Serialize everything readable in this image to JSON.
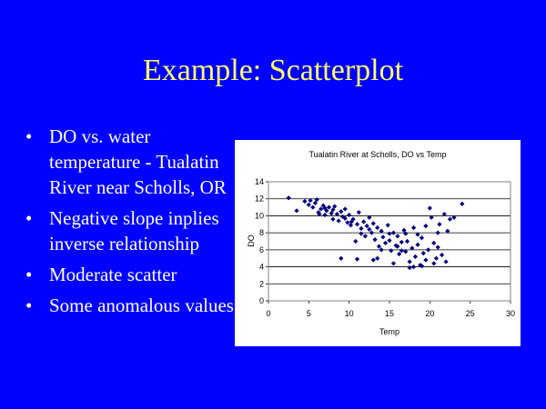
{
  "slide": {
    "title": "Example: Scatterplot",
    "bullets": [
      "DO vs. water temperature - Tualatin River near Scholls, OR",
      "Negative slope inplies inverse relationship",
      "Moderate scatter",
      "Some anomalous values"
    ],
    "bullet_glyph": "•"
  },
  "colors": {
    "background": "#0000ff",
    "title": "#ffff66",
    "text": "#ffffff",
    "marker": "#000080"
  },
  "chart_data": {
    "type": "scatter",
    "title": "Tualatin River at Scholls, DO vs Temp",
    "xlabel": "Temp",
    "ylabel": "DO",
    "xlim": [
      0,
      30
    ],
    "ylim": [
      0,
      14
    ],
    "xticks": [
      0,
      5,
      10,
      15,
      20,
      25,
      30
    ],
    "yticks": [
      0,
      2,
      4,
      6,
      8,
      10,
      12,
      14
    ],
    "grid": "horizontal",
    "legend": "none",
    "series": [
      {
        "marker": "diamond",
        "points": [
          [
            2.5,
            12.1
          ],
          [
            3.5,
            10.6
          ],
          [
            4.5,
            11.7
          ],
          [
            5.0,
            11.3
          ],
          [
            5.2,
            11.8
          ],
          [
            5.5,
            11.0
          ],
          [
            5.8,
            11.5
          ],
          [
            6.0,
            11.9
          ],
          [
            6.2,
            10.4
          ],
          [
            6.5,
            10.8
          ],
          [
            6.8,
            11.2
          ],
          [
            7.0,
            10.1
          ],
          [
            7.2,
            10.6
          ],
          [
            7.5,
            11.0
          ],
          [
            7.8,
            10.3
          ],
          [
            8.0,
            9.6
          ],
          [
            8.2,
            11.1
          ],
          [
            8.5,
            10.2
          ],
          [
            8.7,
            9.4
          ],
          [
            9.0,
            10.5
          ],
          [
            9.2,
            9.9
          ],
          [
            9.5,
            10.8
          ],
          [
            9.8,
            9.2
          ],
          [
            10.0,
            10.1
          ],
          [
            10.2,
            8.9
          ],
          [
            10.5,
            9.6
          ],
          [
            10.8,
            7.0
          ],
          [
            11.0,
            9.0
          ],
          [
            11.2,
            10.4
          ],
          [
            11.5,
            8.5
          ],
          [
            11.8,
            9.3
          ],
          [
            12.0,
            7.6
          ],
          [
            12.2,
            8.8
          ],
          [
            12.5,
            9.8
          ],
          [
            12.8,
            8.0
          ],
          [
            13.0,
            9.1
          ],
          [
            13.2,
            7.2
          ],
          [
            13.5,
            8.6
          ],
          [
            13.7,
            6.4
          ],
          [
            14.0,
            8.2
          ],
          [
            14.2,
            7.5
          ],
          [
            14.5,
            6.8
          ],
          [
            14.8,
            8.9
          ],
          [
            15.0,
            7.1
          ],
          [
            15.2,
            5.9
          ],
          [
            15.5,
            8.0
          ],
          [
            15.8,
            6.5
          ],
          [
            16.0,
            7.6
          ],
          [
            16.2,
            5.5
          ],
          [
            16.5,
            6.9
          ],
          [
            16.8,
            8.3
          ],
          [
            17.0,
            5.8
          ],
          [
            17.2,
            7.0
          ],
          [
            17.5,
            4.6
          ],
          [
            17.8,
            6.2
          ],
          [
            18.0,
            8.6
          ],
          [
            18.2,
            5.2
          ],
          [
            18.5,
            6.6
          ],
          [
            18.8,
            4.2
          ],
          [
            19.0,
            7.4
          ],
          [
            19.2,
            5.6
          ],
          [
            19.5,
            4.8
          ],
          [
            19.8,
            6.0
          ],
          [
            20.0,
            10.9
          ],
          [
            20.2,
            9.8
          ],
          [
            20.5,
            4.4
          ],
          [
            20.8,
            5.0
          ],
          [
            21.0,
            6.3
          ],
          [
            21.2,
            9.0
          ],
          [
            21.5,
            5.4
          ],
          [
            21.8,
            10.2
          ],
          [
            22.0,
            4.6
          ],
          [
            22.2,
            8.2
          ],
          [
            22.5,
            9.6
          ],
          [
            23.0,
            9.8
          ],
          [
            24.0,
            11.4
          ],
          [
            9.0,
            5.0
          ],
          [
            11.0,
            4.9
          ],
          [
            13.0,
            4.8
          ],
          [
            17.5,
            3.9
          ],
          [
            18.0,
            4.0
          ],
          [
            19.0,
            4.1
          ],
          [
            15.0,
            7.9
          ],
          [
            16.0,
            6.4
          ],
          [
            12.5,
            8.4
          ],
          [
            9.5,
            9.7
          ],
          [
            8.0,
            10.7
          ],
          [
            7.0,
            10.9
          ],
          [
            6.3,
            10.2
          ],
          [
            10.3,
            9.3
          ],
          [
            14.0,
            6.0
          ],
          [
            16.5,
            5.9
          ],
          [
            18.5,
            7.8
          ],
          [
            20.5,
            6.8
          ],
          [
            21.0,
            8.0
          ],
          [
            19.5,
            8.8
          ],
          [
            17.0,
            7.9
          ],
          [
            11.5,
            7.9
          ],
          [
            13.5,
            5.0
          ],
          [
            15.5,
            4.4
          ]
        ]
      }
    ]
  }
}
